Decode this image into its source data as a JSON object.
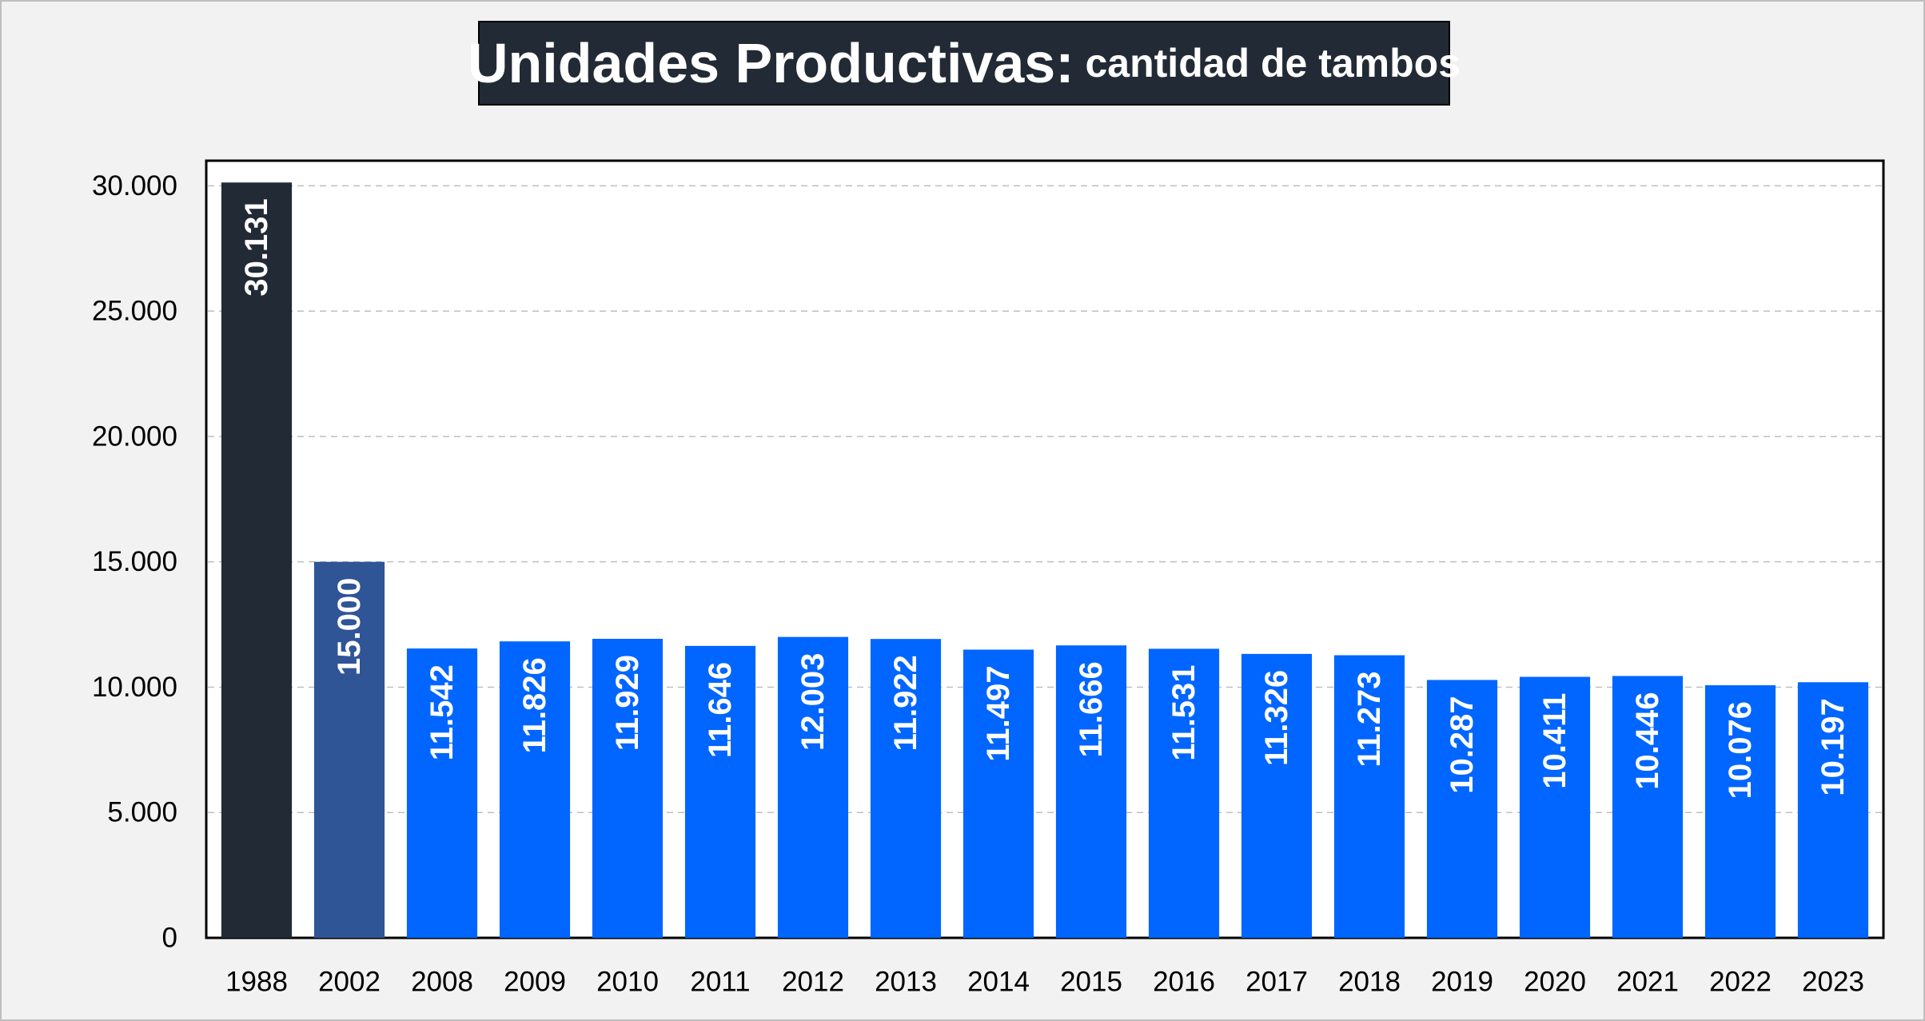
{
  "chart_data": {
    "type": "bar",
    "title": "Unidades Productivas:",
    "subtitle": "cantidad de tambos",
    "categories": [
      "1988",
      "2002",
      "2008",
      "2009",
      "2010",
      "2011",
      "2012",
      "2013",
      "2014",
      "2015",
      "2016",
      "2017",
      "2018",
      "2019",
      "2020",
      "2021",
      "2022",
      "2023"
    ],
    "values": [
      30131,
      15000,
      11542,
      11826,
      11929,
      11646,
      12003,
      11922,
      11497,
      11666,
      11531,
      11326,
      11273,
      10287,
      10411,
      10446,
      10076,
      10197
    ],
    "data_labels": [
      "30.131",
      "15.000",
      "11.542",
      "11.826",
      "11.929",
      "11.646",
      "12.003",
      "11.922",
      "11.497",
      "11.666",
      "11.531",
      "11.326",
      "11.273",
      "10.287",
      "10.411",
      "10.446",
      "10.076",
      "10.197"
    ],
    "y_ticks": [
      0,
      5000,
      10000,
      15000,
      20000,
      25000,
      30000
    ],
    "y_tick_labels": [
      "0",
      "5.000",
      "10.000",
      "15.000",
      "20.000",
      "25.000",
      "30.000"
    ],
    "ylim": [
      0,
      31000
    ],
    "grid": true,
    "xlabel": "",
    "ylabel": "",
    "colors": {
      "bar_default": "#0066ff",
      "bar_1988": "#222a35",
      "bar_2002": "#2f5597",
      "title_bg": "#222a35",
      "title_text": "#ffffff",
      "grid": "#bfbfbf",
      "label_text": "#ffffff"
    }
  }
}
